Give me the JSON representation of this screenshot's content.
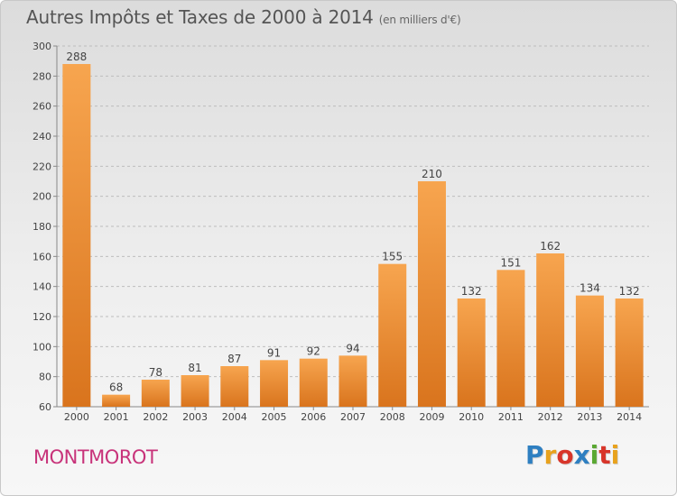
{
  "header": {
    "title": "Autres Impôts et Taxes de 2000 à 2014",
    "subtitle": "(en milliers d'€)"
  },
  "footer": {
    "commune": "MONTMOROT",
    "logo": "Proxiti",
    "logo_colors": [
      "#2e7fc1",
      "#e8a21d",
      "#d8352a",
      "#2e7fc1",
      "#5aa832",
      "#d8352a",
      "#e8a21d"
    ]
  },
  "chart_data": {
    "type": "bar",
    "title": "Autres Impôts et Taxes de 2000 à 2014",
    "subtitle": "(en milliers d'€)",
    "categories": [
      "2000",
      "2001",
      "2002",
      "2003",
      "2004",
      "2005",
      "2006",
      "2007",
      "2008",
      "2009",
      "2010",
      "2011",
      "2012",
      "2013",
      "2014"
    ],
    "values": [
      288,
      68,
      78,
      81,
      87,
      91,
      92,
      94,
      155,
      210,
      132,
      151,
      162,
      134,
      132
    ],
    "ylim": [
      60,
      300
    ],
    "yticks": [
      60,
      80,
      100,
      120,
      140,
      160,
      180,
      200,
      220,
      240,
      260,
      280,
      300
    ],
    "grid": true,
    "colors": {
      "bar_top": "#f7a54f",
      "bar_bottom": "#d9741d",
      "grid": "#bdbdbd",
      "axis": "#888888"
    }
  }
}
